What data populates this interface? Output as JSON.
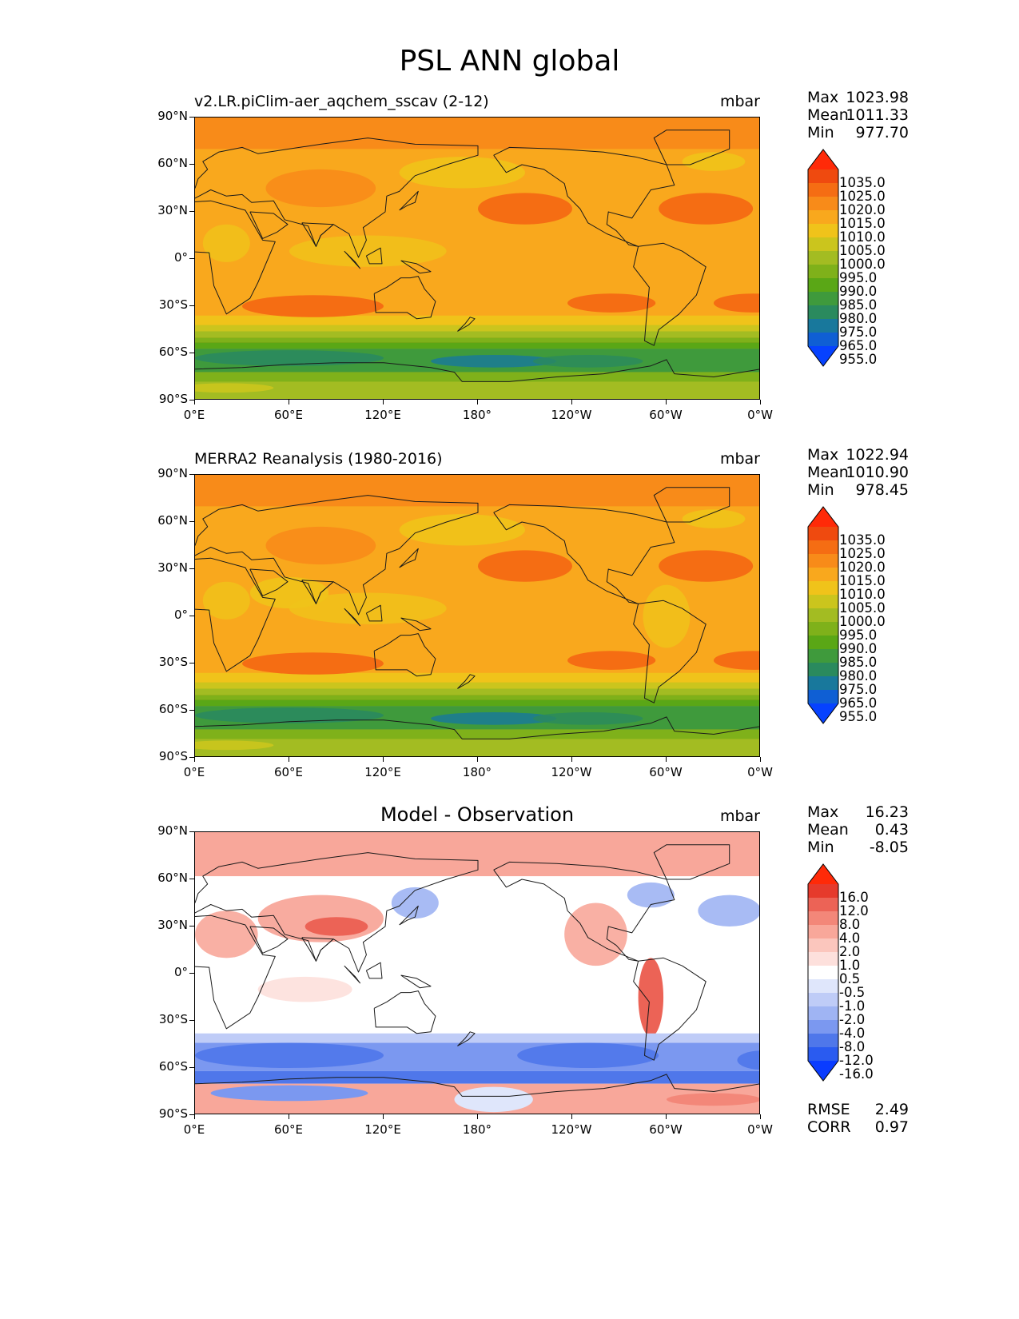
{
  "figure_title": "PSL ANN global",
  "colors": {
    "abs_levels": [
      "#0642ff",
      "#0f5fd4",
      "#18789c",
      "#2a8a5e",
      "#3f9a3c",
      "#5aa716",
      "#7fb11a",
      "#a3bc22",
      "#cbc51d",
      "#f0c31a",
      "#f9a81d",
      "#f88b19",
      "#f56d13",
      "#ef4a0f",
      "#ff2a08"
    ],
    "diff_levels": [
      "#0a3cff",
      "#2a5bf0",
      "#4f77ea",
      "#7b98f0",
      "#9fb4f3",
      "#bfccf7",
      "#dfe6fb",
      "#ffffff",
      "#fde0dc",
      "#fbc6bd",
      "#f8a79a",
      "#f38779",
      "#ec6356",
      "#e63a2c",
      "#ff2a08"
    ],
    "coastline": "#1a1a1a"
  },
  "axes": {
    "lat_ticks": [
      "90°N",
      "60°N",
      "30°N",
      "0°",
      "30°S",
      "60°S",
      "90°S"
    ],
    "lon_ticks": [
      "0°E",
      "60°E",
      "120°E",
      "180°",
      "120°W",
      "60°W",
      "0°W"
    ]
  },
  "panels": [
    {
      "title": "v2.LR.piClim-aer_aqchem_sscav (2-12)",
      "units": "mbar",
      "stats": [
        {
          "label": "Max",
          "value": "1023.98"
        },
        {
          "label": "Mean",
          "value": "1011.33"
        },
        {
          "label": "Min",
          "value": "977.70"
        }
      ],
      "colorbar_labels": [
        "1035.0",
        "1025.0",
        "1020.0",
        "1015.0",
        "1010.0",
        "1005.0",
        "1000.0",
        "995.0",
        "990.0",
        "985.0",
        "980.0",
        "975.0",
        "965.0",
        "955.0"
      ],
      "kind": "abs"
    },
    {
      "title": "MERRA2 Reanalysis (1980-2016)",
      "units": "mbar",
      "stats": [
        {
          "label": "Max",
          "value": "1022.94"
        },
        {
          "label": "Mean",
          "value": "1010.90"
        },
        {
          "label": "Min",
          "value": "978.45"
        }
      ],
      "colorbar_labels": [
        "1035.0",
        "1025.0",
        "1020.0",
        "1015.0",
        "1010.0",
        "1005.0",
        "1000.0",
        "995.0",
        "990.0",
        "985.0",
        "980.0",
        "975.0",
        "965.0",
        "955.0"
      ],
      "kind": "abs"
    },
    {
      "title": "Model - Observation",
      "units": "mbar",
      "stats": [
        {
          "label": "Max",
          "value": "16.23"
        },
        {
          "label": "Mean",
          "value": "0.43"
        },
        {
          "label": "Min",
          "value": "-8.05"
        }
      ],
      "colorbar_labels": [
        "16.0",
        "12.0",
        "8.0",
        "4.0",
        "2.0",
        "1.0",
        "0.5",
        "-0.5",
        "-1.0",
        "-2.0",
        "-4.0",
        "-8.0",
        "-12.0",
        "-16.0"
      ],
      "kind": "diff",
      "footer_stats": [
        {
          "label": "RMSE",
          "value": "2.49"
        },
        {
          "label": "CORR",
          "value": "0.97"
        }
      ]
    }
  ],
  "chart_data": [
    {
      "type": "heatmap",
      "title": "v2.LR.piClim-aer_aqchem_sscav (2-12)",
      "units": "mbar",
      "x_range": [
        0,
        360
      ],
      "y_range": [
        -90,
        90
      ],
      "levels": [
        955,
        965,
        975,
        980,
        985,
        990,
        995,
        1000,
        1005,
        1010,
        1015,
        1020,
        1025,
        1035
      ],
      "stats": {
        "max": 1023.98,
        "mean": 1011.33,
        "min": 977.7
      }
    },
    {
      "type": "heatmap",
      "title": "MERRA2 Reanalysis (1980-2016)",
      "units": "mbar",
      "x_range": [
        0,
        360
      ],
      "y_range": [
        -90,
        90
      ],
      "levels": [
        955,
        965,
        975,
        980,
        985,
        990,
        995,
        1000,
        1005,
        1010,
        1015,
        1020,
        1025,
        1035
      ],
      "stats": {
        "max": 1022.94,
        "mean": 1010.9,
        "min": 978.45
      }
    },
    {
      "type": "heatmap",
      "title": "Model - Observation",
      "units": "mbar",
      "x_range": [
        0,
        360
      ],
      "y_range": [
        -90,
        90
      ],
      "levels": [
        -16,
        -12,
        -8,
        -4,
        -2,
        -1,
        -0.5,
        0.5,
        1,
        2,
        4,
        8,
        12,
        16
      ],
      "stats": {
        "max": 16.23,
        "mean": 0.43,
        "min": -8.05,
        "rmse": 2.49,
        "corr": 0.97
      }
    }
  ]
}
